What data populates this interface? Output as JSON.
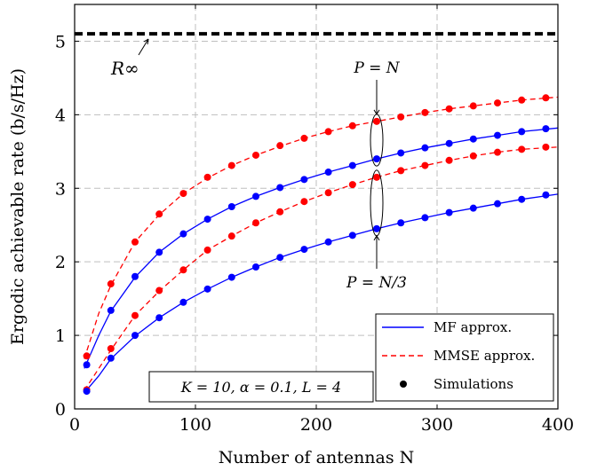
{
  "chart_data": {
    "type": "line",
    "xlabel": "Number of antennas N",
    "ylabel": "Ergodic achievable rate (b/s/Hz)",
    "xlim": [
      0,
      400
    ],
    "ylim": [
      0,
      5.5
    ],
    "xticks": [
      0,
      100,
      200,
      300,
      400
    ],
    "yticks": [
      0,
      1,
      2,
      3,
      4,
      5
    ],
    "grid": true,
    "legend_position": "bottom-right",
    "legend": [
      {
        "label": "MF approx.",
        "style": "solid",
        "color": "#0000ff"
      },
      {
        "label": "MMSE approx.",
        "style": "dashed",
        "color": "#ff0000"
      },
      {
        "label": "Simulations",
        "style": "marker",
        "color": "#000000"
      }
    ],
    "param_box": "K = 10, α = 0.1, L = 4",
    "asymptote": {
      "label": "R∞",
      "y": 5.1,
      "color": "#000000"
    },
    "annotations": [
      {
        "text": "P = N"
      },
      {
        "text": "P = N/3"
      }
    ],
    "x": [
      10,
      30,
      50,
      70,
      90,
      110,
      130,
      150,
      170,
      190,
      210,
      230,
      250,
      270,
      290,
      310,
      330,
      350,
      370,
      390
    ],
    "series": [
      {
        "name": "MMSE approx.",
        "group": "P = N",
        "style": "dashed",
        "color": "#ff0000",
        "curve": [
          [
            8,
            0.68
          ],
          [
            20,
            1.3
          ],
          [
            30,
            1.68
          ],
          [
            50,
            2.27
          ],
          [
            70,
            2.64
          ],
          [
            90,
            2.93
          ],
          [
            110,
            3.14
          ],
          [
            130,
            3.31
          ],
          [
            150,
            3.45
          ],
          [
            170,
            3.57
          ],
          [
            190,
            3.68
          ],
          [
            210,
            3.77
          ],
          [
            230,
            3.85
          ],
          [
            250,
            3.91
          ],
          [
            270,
            3.97
          ],
          [
            290,
            4.03
          ],
          [
            310,
            4.08
          ],
          [
            330,
            4.12
          ],
          [
            350,
            4.16
          ],
          [
            370,
            4.2
          ],
          [
            400,
            4.24
          ]
        ],
        "values": [
          0.72,
          1.7,
          2.27,
          2.65,
          2.93,
          3.15,
          3.31,
          3.45,
          3.58,
          3.68,
          3.77,
          3.85,
          3.91,
          3.97,
          4.03,
          4.08,
          4.12,
          4.16,
          4.2,
          4.23
        ]
      },
      {
        "name": "MF approx.",
        "group": "P = N",
        "style": "solid",
        "color": "#0000ff",
        "curve": [
          [
            8,
            0.55
          ],
          [
            20,
            1.0
          ],
          [
            30,
            1.33
          ],
          [
            50,
            1.79
          ],
          [
            70,
            2.13
          ],
          [
            90,
            2.38
          ],
          [
            110,
            2.58
          ],
          [
            130,
            2.75
          ],
          [
            150,
            2.89
          ],
          [
            170,
            3.01
          ],
          [
            190,
            3.12
          ],
          [
            210,
            3.22
          ],
          [
            230,
            3.31
          ],
          [
            250,
            3.4
          ],
          [
            270,
            3.48
          ],
          [
            290,
            3.55
          ],
          [
            310,
            3.61
          ],
          [
            330,
            3.67
          ],
          [
            350,
            3.72
          ],
          [
            370,
            3.77
          ],
          [
            400,
            3.82
          ]
        ],
        "values": [
          0.6,
          1.34,
          1.8,
          2.13,
          2.38,
          2.58,
          2.75,
          2.89,
          3.01,
          3.12,
          3.22,
          3.31,
          3.4,
          3.48,
          3.55,
          3.61,
          3.67,
          3.72,
          3.77,
          3.81
        ]
      },
      {
        "name": "MMSE approx.",
        "group": "P = N/3",
        "style": "dashed",
        "color": "#ff0000",
        "curve": [
          [
            8,
            0.25
          ],
          [
            20,
            0.55
          ],
          [
            30,
            0.8
          ],
          [
            50,
            1.27
          ],
          [
            70,
            1.6
          ],
          [
            90,
            1.89
          ],
          [
            110,
            2.16
          ],
          [
            130,
            2.35
          ],
          [
            150,
            2.53
          ],
          [
            170,
            2.68
          ],
          [
            190,
            2.82
          ],
          [
            210,
            2.94
          ],
          [
            230,
            3.05
          ],
          [
            250,
            3.15
          ],
          [
            270,
            3.24
          ],
          [
            290,
            3.31
          ],
          [
            310,
            3.38
          ],
          [
            330,
            3.44
          ],
          [
            350,
            3.49
          ],
          [
            370,
            3.53
          ],
          [
            400,
            3.56
          ]
        ],
        "values": [
          0.26,
          0.82,
          1.27,
          1.61,
          1.89,
          2.16,
          2.35,
          2.53,
          2.68,
          2.82,
          2.94,
          3.05,
          3.15,
          3.24,
          3.31,
          3.38,
          3.44,
          3.49,
          3.53,
          3.56
        ]
      },
      {
        "name": "MF approx.",
        "group": "P = N/3",
        "style": "solid",
        "color": "#0000ff",
        "curve": [
          [
            8,
            0.22
          ],
          [
            20,
            0.45
          ],
          [
            30,
            0.68
          ],
          [
            50,
            0.99
          ],
          [
            70,
            1.24
          ],
          [
            90,
            1.45
          ],
          [
            110,
            1.63
          ],
          [
            130,
            1.79
          ],
          [
            150,
            1.93
          ],
          [
            170,
            2.06
          ],
          [
            190,
            2.17
          ],
          [
            210,
            2.27
          ],
          [
            230,
            2.36
          ],
          [
            250,
            2.45
          ],
          [
            270,
            2.53
          ],
          [
            290,
            2.6
          ],
          [
            310,
            2.67
          ],
          [
            330,
            2.73
          ],
          [
            350,
            2.79
          ],
          [
            370,
            2.85
          ],
          [
            400,
            2.92
          ]
        ],
        "values": [
          0.24,
          0.69,
          1.0,
          1.24,
          1.45,
          1.63,
          1.79,
          1.93,
          2.06,
          2.17,
          2.27,
          2.36,
          2.45,
          2.53,
          2.6,
          2.67,
          2.73,
          2.79,
          2.85,
          2.91
        ]
      }
    ]
  }
}
